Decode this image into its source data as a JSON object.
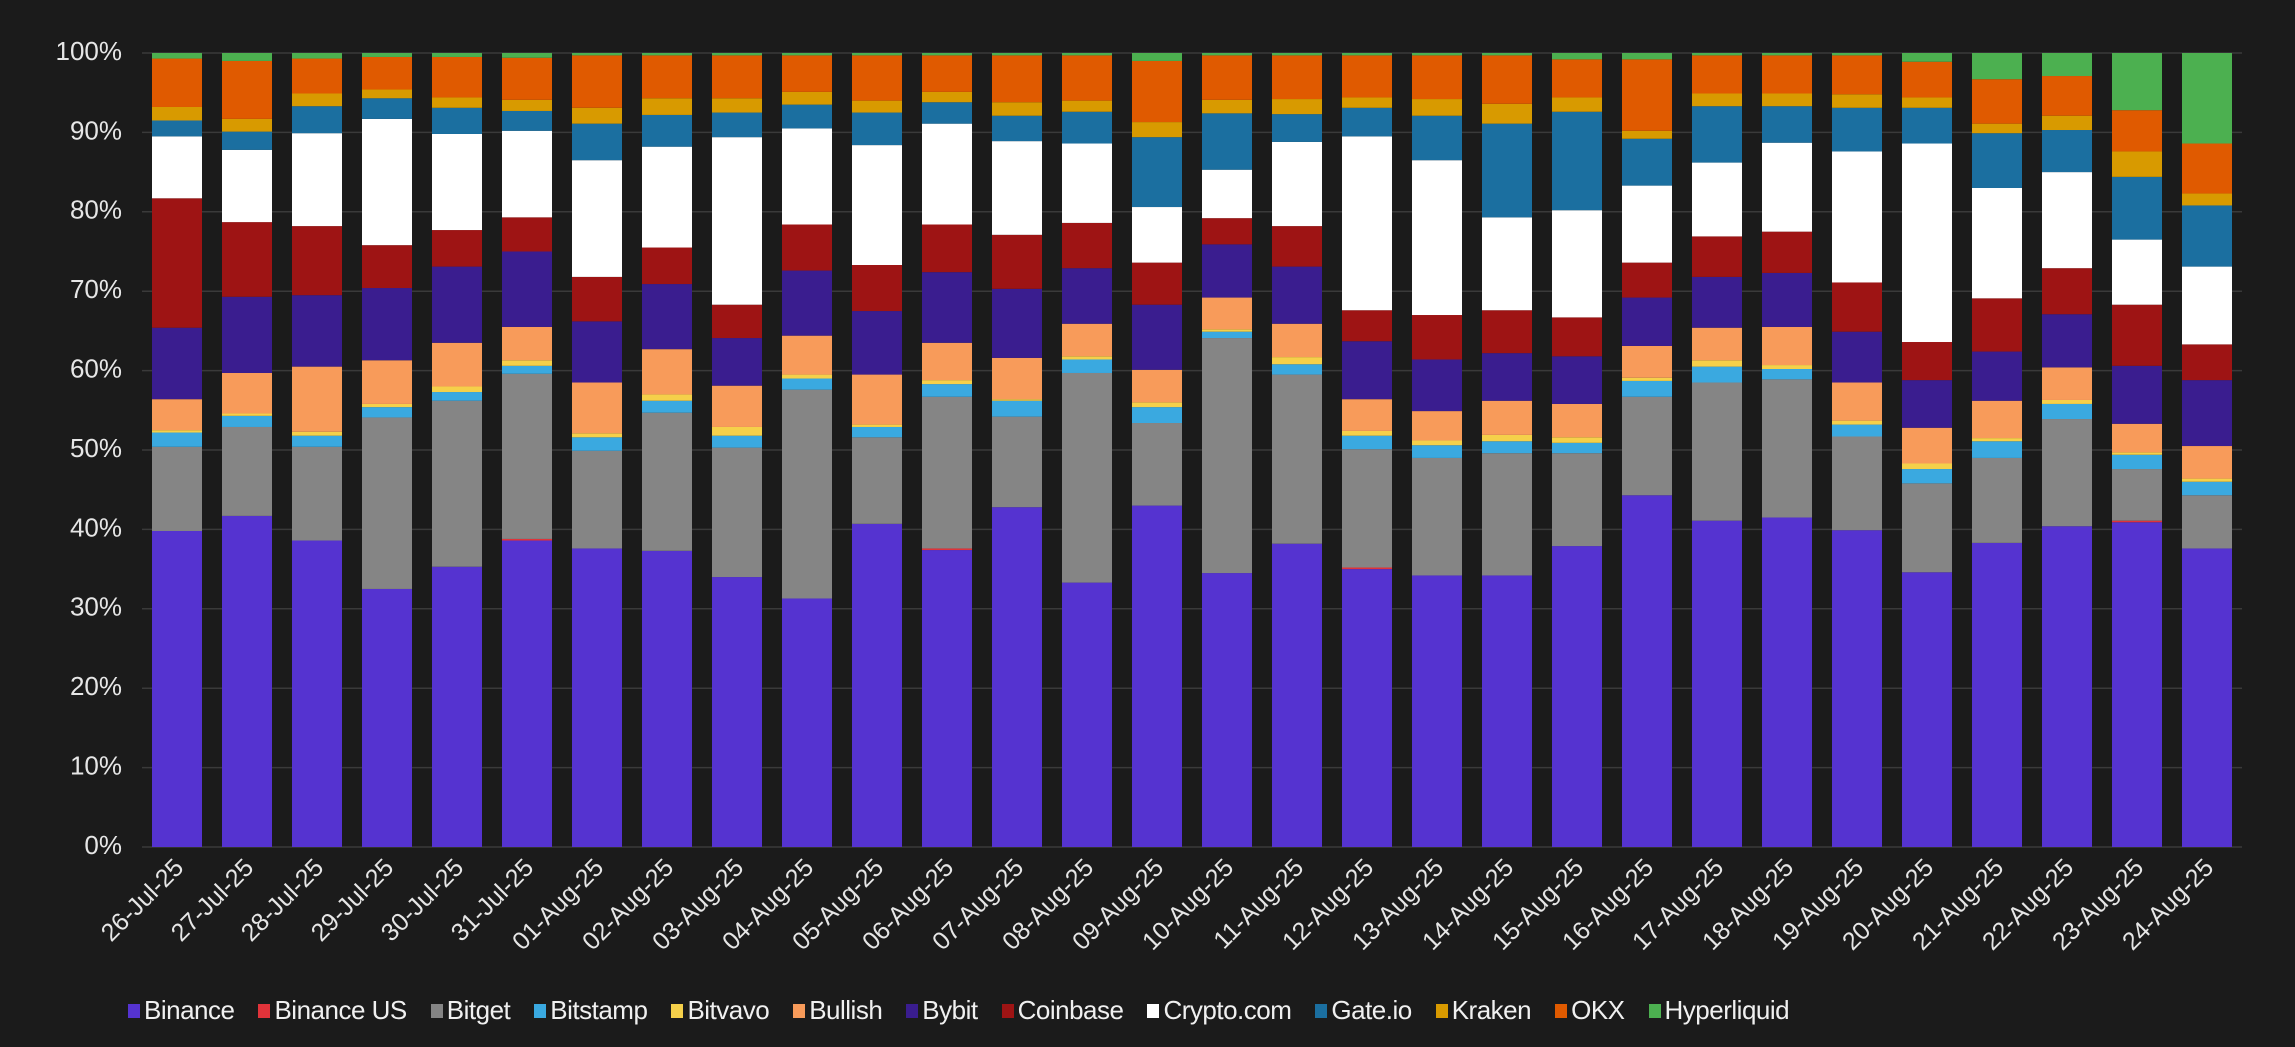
{
  "chart_data": {
    "type": "bar",
    "stacked": true,
    "normalized": true,
    "title": "",
    "xlabel": "",
    "ylabel": "",
    "ylim": [
      0,
      100
    ],
    "yticks": [
      "0%",
      "10%",
      "20%",
      "30%",
      "40%",
      "50%",
      "60%",
      "70%",
      "80%",
      "90%",
      "100%"
    ],
    "grid": true,
    "legend_position": "bottom",
    "categories": [
      "26-Jul-25",
      "27-Jul-25",
      "28-Jul-25",
      "29-Jul-25",
      "30-Jul-25",
      "31-Jul-25",
      "01-Aug-25",
      "02-Aug-25",
      "03-Aug-25",
      "04-Aug-25",
      "05-Aug-25",
      "06-Aug-25",
      "07-Aug-25",
      "08-Aug-25",
      "09-Aug-25",
      "10-Aug-25",
      "11-Aug-25",
      "12-Aug-25",
      "13-Aug-25",
      "14-Aug-25",
      "15-Aug-25",
      "16-Aug-25",
      "17-Aug-25",
      "18-Aug-25",
      "19-Aug-25",
      "20-Aug-25",
      "21-Aug-25",
      "22-Aug-25",
      "23-Aug-25",
      "24-Aug-25"
    ],
    "series": [
      {
        "name": "Binance",
        "color": "#5533d0",
        "values": [
          39.8,
          41.7,
          38.6,
          32.5,
          35.3,
          38.6,
          37.6,
          37.3,
          34.0,
          31.3,
          40.7,
          37.4,
          42.8,
          33.3,
          43.0,
          34.5,
          38.2,
          35.0,
          34.2,
          34.2,
          37.9,
          44.3,
          41.1,
          41.5,
          39.9,
          34.6,
          38.3,
          40.4,
          40.9,
          37.6
        ]
      },
      {
        "name": "Binance US",
        "color": "#e0333a",
        "values": [
          0,
          0,
          0,
          0,
          0,
          0.2,
          0,
          0,
          0,
          0,
          0,
          0.2,
          0,
          0,
          0,
          0,
          0,
          0.2,
          0,
          0,
          0,
          0,
          0,
          0,
          0,
          0,
          0,
          0,
          0.2,
          0
        ]
      },
      {
        "name": "Bitget",
        "color": "#858585",
        "values": [
          10.6,
          11.2,
          11.8,
          21.6,
          20.9,
          20.8,
          12.3,
          17.4,
          16.3,
          26.3,
          10.9,
          19.1,
          11.4,
          26.4,
          10.4,
          29.6,
          21.3,
          14.9,
          14.8,
          15.4,
          11.7,
          12.4,
          17.4,
          17.4,
          11.8,
          11.2,
          10.7,
          13.5,
          6.5,
          6.7
        ]
      },
      {
        "name": "Bitstamp",
        "color": "#3aa9e0",
        "values": [
          1.8,
          1.4,
          1.4,
          1.3,
          1.1,
          1.0,
          1.7,
          1.5,
          1.5,
          1.4,
          1.3,
          1.6,
          2.0,
          1.7,
          2.0,
          0.8,
          1.3,
          1.7,
          1.6,
          1.5,
          1.3,
          2.0,
          2.0,
          1.3,
          1.5,
          1.8,
          2.1,
          1.9,
          1.8,
          1.7
        ]
      },
      {
        "name": "Bitvavo",
        "color": "#f5d04a",
        "values": [
          0.3,
          0.3,
          0.5,
          0.4,
          0.7,
          0.7,
          0.5,
          0.8,
          1.1,
          0.5,
          0.3,
          0.5,
          0.2,
          0.4,
          0.6,
          0.3,
          0.9,
          0.6,
          0.6,
          0.8,
          0.7,
          0.4,
          0.8,
          0.5,
          0.5,
          0.7,
          0.4,
          0.5,
          0.3,
          0.4
        ]
      },
      {
        "name": "Bullish",
        "color": "#f89b5a",
        "values": [
          3.9,
          5.1,
          8.2,
          5.5,
          5.5,
          4.2,
          6.4,
          5.7,
          5.2,
          4.9,
          6.3,
          4.7,
          5.2,
          4.1,
          4.1,
          4.0,
          4.2,
          4.0,
          3.7,
          4.3,
          4.2,
          4.0,
          4.1,
          4.8,
          4.8,
          4.5,
          4.7,
          4.1,
          3.6,
          4.1
        ]
      },
      {
        "name": "Bybit",
        "color": "#3a1d8f",
        "values": [
          9.0,
          9.6,
          9.0,
          9.1,
          9.6,
          9.5,
          7.7,
          8.2,
          6.0,
          8.2,
          8.0,
          8.9,
          8.7,
          7.0,
          8.2,
          6.7,
          7.2,
          7.3,
          6.5,
          6.0,
          6.0,
          6.1,
          6.4,
          6.8,
          6.4,
          6.0,
          6.2,
          6.7,
          7.3,
          8.3
        ]
      },
      {
        "name": "Coinbase",
        "color": "#9e1414",
        "values": [
          16.3,
          9.4,
          8.7,
          5.4,
          4.6,
          4.3,
          5.6,
          4.6,
          4.2,
          5.8,
          5.8,
          6.0,
          6.8,
          5.7,
          5.3,
          3.3,
          5.1,
          3.9,
          5.6,
          5.4,
          4.9,
          4.4,
          5.1,
          5.2,
          6.2,
          4.8,
          6.7,
          5.8,
          7.7,
          4.5
        ]
      },
      {
        "name": "Crypto.com",
        "color": "#ffffff",
        "values": [
          7.8,
          9.1,
          11.7,
          15.9,
          12.1,
          10.9,
          14.7,
          12.7,
          21.1,
          12.1,
          15.1,
          12.7,
          11.8,
          10.0,
          7.0,
          6.1,
          10.6,
          21.9,
          19.5,
          11.7,
          13.5,
          9.7,
          9.3,
          11.2,
          16.5,
          25.0,
          13.9,
          12.1,
          8.2,
          9.8
        ]
      },
      {
        "name": "Gate.io",
        "color": "#1b6fa0",
        "values": [
          2.0,
          2.3,
          3.4,
          2.6,
          3.3,
          2.5,
          4.6,
          4.0,
          3.1,
          3.0,
          4.1,
          2.7,
          3.2,
          4.0,
          8.8,
          7.1,
          3.5,
          3.6,
          5.6,
          11.8,
          12.4,
          5.9,
          7.1,
          4.6,
          5.5,
          4.5,
          6.9,
          5.3,
          7.9,
          7.7
        ]
      },
      {
        "name": "Kraken",
        "color": "#d89a00",
        "values": [
          1.7,
          1.6,
          1.6,
          1.1,
          1.3,
          1.4,
          2.0,
          2.1,
          1.8,
          1.6,
          1.5,
          1.3,
          1.7,
          1.4,
          1.9,
          1.7,
          1.9,
          1.3,
          2.1,
          2.5,
          1.8,
          1.0,
          1.6,
          1.6,
          1.7,
          1.3,
          1.2,
          1.8,
          3.2,
          1.5
        ]
      },
      {
        "name": "OKX",
        "color": "#e05a00",
        "values": [
          6.1,
          7.3,
          4.4,
          4.1,
          5.1,
          5.3,
          6.6,
          5.4,
          5.4,
          4.6,
          5.7,
          4.6,
          5.9,
          5.7,
          7.7,
          5.6,
          5.5,
          5.3,
          5.5,
          6.1,
          4.8,
          9.0,
          4.8,
          4.8,
          4.9,
          4.5,
          5.6,
          5.0,
          5.2,
          6.3
        ]
      },
      {
        "name": "Hyperliquid",
        "color": "#4cb050",
        "values": [
          0.7,
          1.0,
          0.7,
          0.5,
          0.5,
          0.6,
          0.3,
          0.3,
          0.3,
          0.3,
          0.3,
          0.3,
          0.3,
          0.3,
          1.0,
          0.3,
          0.3,
          0.3,
          0.3,
          0.3,
          0.8,
          0.8,
          0.3,
          0.3,
          0.3,
          1.1,
          3.3,
          2.9,
          7.2,
          11.4
        ]
      }
    ]
  }
}
